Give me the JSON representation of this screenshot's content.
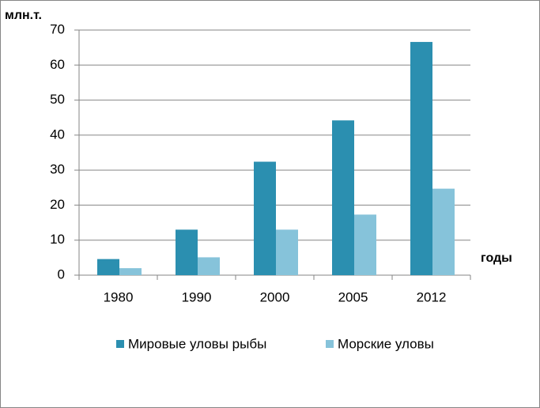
{
  "chart_data": {
    "type": "bar",
    "y_label": "млн.т.",
    "x_label": "годы",
    "categories": [
      "1980",
      "1990",
      "2000",
      "2005",
      "2012"
    ],
    "series": [
      {
        "name": "Мировые уловы рыбы",
        "color": "#2b8fb0",
        "values": [
          4.6,
          13,
          32.4,
          44.2,
          66.6
        ]
      },
      {
        "name": "Морские уловы",
        "color": "#86c3da",
        "values": [
          2.0,
          5.1,
          13,
          17.3,
          24.7
        ]
      }
    ],
    "ylim": [
      0,
      70
    ],
    "yticks": [
      0,
      10,
      20,
      30,
      40,
      50,
      60,
      70
    ],
    "grid": true,
    "legend": "bottom"
  }
}
